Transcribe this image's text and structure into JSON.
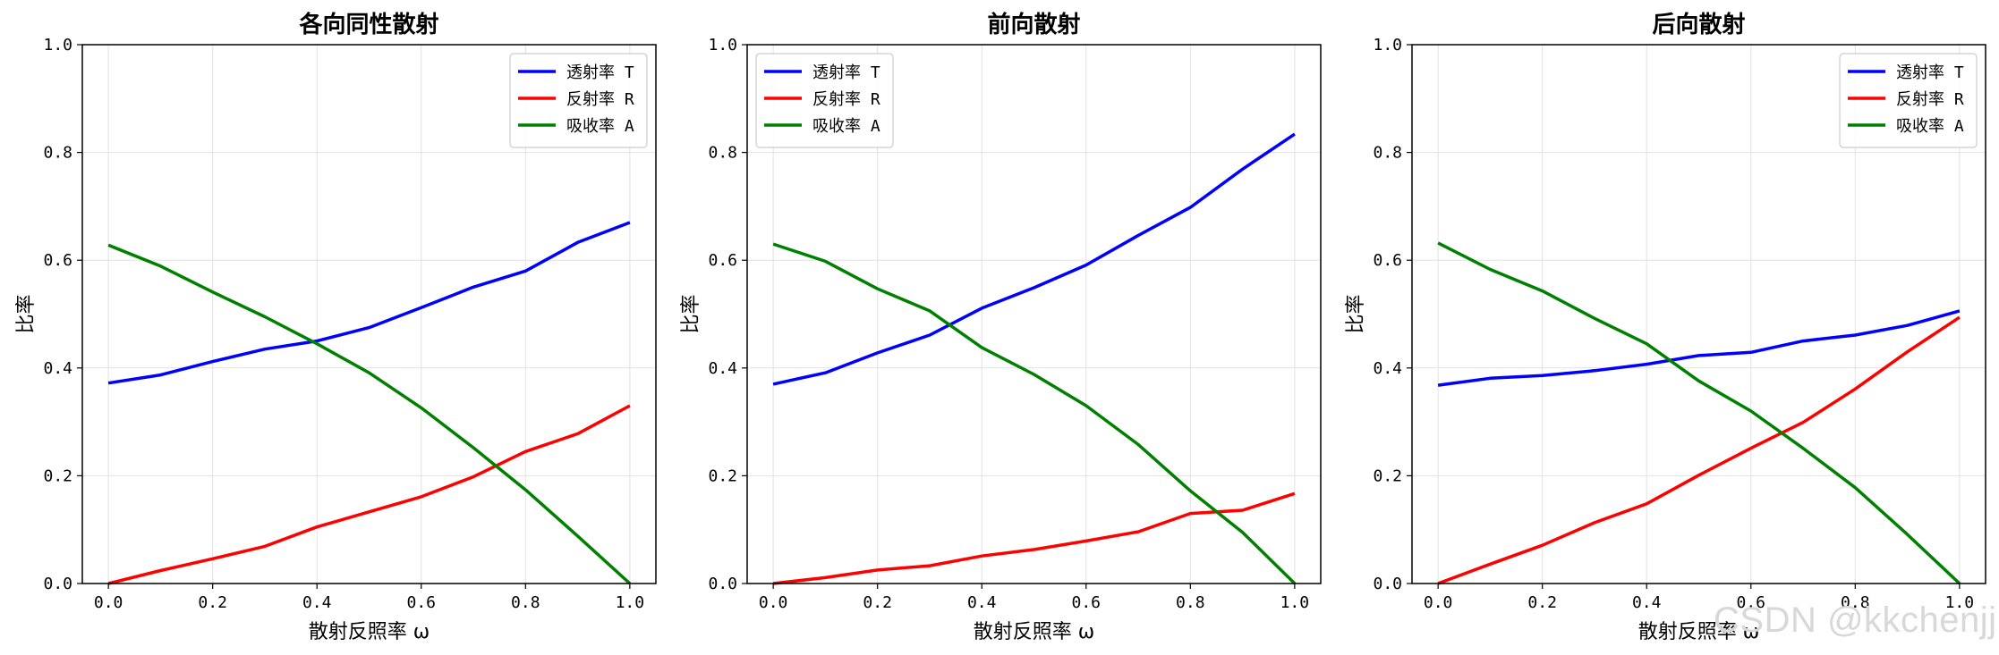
{
  "watermark": "CSDN @kkchenjj",
  "chart_data": [
    {
      "type": "line",
      "title": "各向同性散射",
      "xlabel": "散射反照率 ω",
      "ylabel": "比率",
      "xlim": [
        0.0,
        1.0
      ],
      "ylim": [
        0.0,
        1.0
      ],
      "xticks": [
        "0.0",
        "0.2",
        "0.4",
        "0.6",
        "0.8",
        "1.0"
      ],
      "yticks": [
        "0.0",
        "0.2",
        "0.4",
        "0.6",
        "0.8",
        "1.0"
      ],
      "grid": true,
      "legend_position": "top-right",
      "x": [
        0.0,
        0.1,
        0.2,
        0.3,
        0.4,
        0.5,
        0.6,
        0.7,
        0.8,
        0.9,
        1.0
      ],
      "series": [
        {
          "name": "透射率 T",
          "color": "#0000ff",
          "values": [
            0.372,
            0.387,
            0.412,
            0.435,
            0.45,
            0.475,
            0.512,
            0.55,
            0.58,
            0.633,
            0.67
          ]
        },
        {
          "name": "反射率 R",
          "color": "#ff0000",
          "values": [
            0.0,
            0.024,
            0.046,
            0.069,
            0.105,
            0.133,
            0.161,
            0.198,
            0.245,
            0.278,
            0.33
          ]
        },
        {
          "name": "吸收率 A",
          "color": "#008000",
          "values": [
            0.628,
            0.589,
            0.541,
            0.495,
            0.445,
            0.391,
            0.326,
            0.252,
            0.174,
            0.088,
            0.0
          ]
        }
      ]
    },
    {
      "type": "line",
      "title": "前向散射",
      "xlabel": "散射反照率 ω",
      "ylabel": "比率",
      "xlim": [
        0.0,
        1.0
      ],
      "ylim": [
        0.0,
        1.0
      ],
      "xticks": [
        "0.0",
        "0.2",
        "0.4",
        "0.6",
        "0.8",
        "1.0"
      ],
      "yticks": [
        "0.0",
        "0.2",
        "0.4",
        "0.6",
        "0.8",
        "1.0"
      ],
      "grid": true,
      "legend_position": "top-left",
      "x": [
        0.0,
        0.1,
        0.2,
        0.3,
        0.4,
        0.5,
        0.6,
        0.7,
        0.8,
        0.9,
        1.0
      ],
      "series": [
        {
          "name": "透射率 T",
          "color": "#0000ff",
          "values": [
            0.37,
            0.391,
            0.428,
            0.461,
            0.511,
            0.549,
            0.591,
            0.646,
            0.698,
            0.769,
            0.834
          ]
        },
        {
          "name": "反射率 R",
          "color": "#ff0000",
          "values": [
            0.0,
            0.011,
            0.025,
            0.033,
            0.051,
            0.063,
            0.079,
            0.096,
            0.13,
            0.136,
            0.167
          ]
        },
        {
          "name": "吸收率 A",
          "color": "#008000",
          "values": [
            0.63,
            0.598,
            0.547,
            0.506,
            0.438,
            0.388,
            0.33,
            0.258,
            0.172,
            0.095,
            0.0
          ]
        }
      ]
    },
    {
      "type": "line",
      "title": "后向散射",
      "xlabel": "散射反照率 ω",
      "ylabel": "比率",
      "xlim": [
        0.0,
        1.0
      ],
      "ylim": [
        0.0,
        1.0
      ],
      "xticks": [
        "0.0",
        "0.2",
        "0.4",
        "0.6",
        "0.8",
        "1.0"
      ],
      "yticks": [
        "0.0",
        "0.2",
        "0.4",
        "0.6",
        "0.8",
        "1.0"
      ],
      "grid": true,
      "legend_position": "top-right",
      "x": [
        0.0,
        0.1,
        0.2,
        0.3,
        0.4,
        0.5,
        0.6,
        0.7,
        0.8,
        0.9,
        1.0
      ],
      "series": [
        {
          "name": "透射率 T",
          "color": "#0000ff",
          "values": [
            0.368,
            0.381,
            0.386,
            0.395,
            0.407,
            0.423,
            0.429,
            0.45,
            0.461,
            0.479,
            0.506
          ]
        },
        {
          "name": "反射率 R",
          "color": "#ff0000",
          "values": [
            0.0,
            0.036,
            0.071,
            0.113,
            0.148,
            0.201,
            0.251,
            0.299,
            0.361,
            0.43,
            0.494
          ]
        },
        {
          "name": "吸收率 A",
          "color": "#008000",
          "values": [
            0.632,
            0.583,
            0.543,
            0.492,
            0.445,
            0.376,
            0.32,
            0.251,
            0.178,
            0.091,
            0.0
          ]
        }
      ]
    }
  ]
}
